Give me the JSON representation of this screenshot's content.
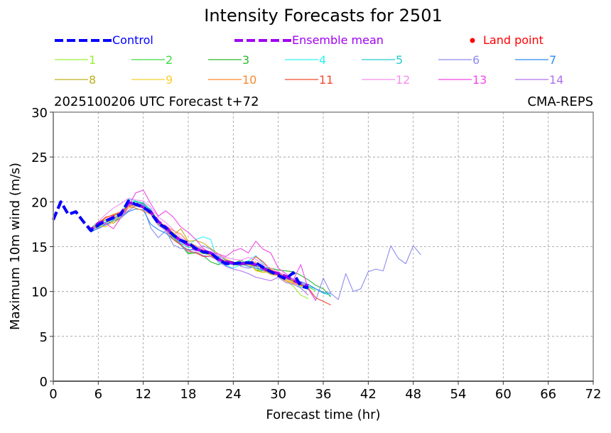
{
  "chart_data": {
    "type": "line",
    "title": "Intensity Forecasts for 2501",
    "subtitle_left": "2025100206 UTC Forecast t+72",
    "subtitle_right": "CMA-REPS",
    "xlabel": "Forecast time (hr)",
    "ylabel": "Maximum 10m wind (m/s)",
    "xlim": [
      0,
      72
    ],
    "ylim": [
      0,
      30
    ],
    "xticks": [
      0,
      6,
      12,
      18,
      24,
      30,
      36,
      42,
      48,
      54,
      60,
      66,
      72
    ],
    "yticks": [
      0,
      5,
      10,
      15,
      20,
      25,
      30
    ],
    "grid": true,
    "legend": {
      "placement": "top",
      "control": {
        "label": "Control",
        "color": "#0000ff"
      },
      "mean": {
        "label": "Ensemble mean",
        "color": "#a000f0"
      },
      "land": {
        "label": "Land point",
        "color": "#ff0000"
      },
      "members": [
        {
          "label": "1",
          "color": "#9aef3a"
        },
        {
          "label": "2",
          "color": "#3ddc3d"
        },
        {
          "label": "3",
          "color": "#2eb82e"
        },
        {
          "label": "4",
          "color": "#2ef2f2"
        },
        {
          "label": "5",
          "color": "#22cccc"
        },
        {
          "label": "6",
          "color": "#8c8cf0"
        },
        {
          "label": "7",
          "color": "#2d8cf0"
        },
        {
          "label": "8",
          "color": "#bfb020"
        },
        {
          "label": "9",
          "color": "#f7d02e"
        },
        {
          "label": "10",
          "color": "#f78a2e"
        },
        {
          "label": "11",
          "color": "#f04a2e"
        },
        {
          "label": "12",
          "color": "#f78cf0"
        },
        {
          "label": "13",
          "color": "#f048e8"
        },
        {
          "label": "14",
          "color": "#b070f0"
        }
      ]
    },
    "series": [
      {
        "name": "Control",
        "x": [
          0,
          1,
          2,
          3,
          4,
          5,
          6,
          7,
          8,
          9,
          10,
          11,
          12,
          13,
          14,
          15,
          16,
          17,
          18,
          19,
          20,
          21,
          22,
          23,
          24,
          25,
          26,
          27,
          28,
          29,
          30,
          31,
          32,
          33,
          34
        ],
        "values": [
          18,
          20,
          18.6,
          18.9,
          17.8,
          16.8,
          17.4,
          17.9,
          18.2,
          18.6,
          20.1,
          19.7,
          19.4,
          18.8,
          17.6,
          17.1,
          16.3,
          15.7,
          15.4,
          14.8,
          14.4,
          14.3,
          13.6,
          13.1,
          13.1,
          13.2,
          13.2,
          13.2,
          12.7,
          12.2,
          11.8,
          11.4,
          12.1,
          10.6,
          10.4
        ]
      },
      {
        "name": "Ensemble mean",
        "x": [
          0,
          1,
          2,
          3,
          4,
          5,
          6,
          7,
          8,
          9,
          10,
          11,
          12,
          13,
          14,
          15,
          16,
          17,
          18,
          19,
          20,
          21,
          22,
          23,
          24,
          25,
          26,
          27,
          28,
          29,
          30,
          31,
          32,
          33,
          34
        ],
        "values": [
          18,
          20,
          18.6,
          18.9,
          17.8,
          16.9,
          17.6,
          17.9,
          18.3,
          18.7,
          19.9,
          19.8,
          19.4,
          18.9,
          17.8,
          17.2,
          16.3,
          15.7,
          15.2,
          14.7,
          14.5,
          14.3,
          13.6,
          13.3,
          13.2,
          13.1,
          13.2,
          13.0,
          12.6,
          12.2,
          12.0,
          11.7,
          11.2,
          10.9,
          10.6
        ]
      },
      {
        "name": "1",
        "x": [
          5,
          6,
          7,
          8,
          9,
          10,
          11,
          12,
          13,
          14,
          15,
          16,
          17,
          18,
          19,
          20,
          21,
          22,
          23,
          24,
          25,
          26,
          27,
          28,
          29,
          30,
          31,
          32,
          33,
          34
        ],
        "values": [
          16.8,
          17.2,
          17.6,
          17.9,
          18.3,
          19.7,
          19.8,
          19.6,
          18.7,
          17.6,
          17.3,
          16.1,
          15.4,
          14.3,
          14.4,
          14.2,
          14.3,
          13.4,
          13.6,
          13.1,
          13.2,
          12.8,
          12.6,
          12.1,
          12.6,
          11.6,
          11.2,
          10.6,
          9.6,
          9.2
        ]
      },
      {
        "name": "2",
        "x": [
          5,
          6,
          7,
          8,
          9,
          10,
          11,
          12,
          13,
          14,
          15,
          16,
          17,
          18,
          19,
          20,
          21,
          22,
          23,
          24,
          25,
          26,
          27,
          28,
          29,
          30,
          31,
          32,
          33,
          34,
          35
        ],
        "values": [
          16.7,
          17.6,
          18.0,
          18.4,
          18.8,
          19.9,
          20.0,
          19.7,
          19.0,
          17.8,
          17.3,
          16.5,
          15.8,
          15.2,
          15.0,
          14.3,
          14.0,
          13.6,
          13.2,
          13.0,
          12.9,
          13.1,
          12.4,
          12.3,
          12.0,
          11.8,
          11.5,
          11.2,
          11.0,
          10.5,
          10.1
        ]
      },
      {
        "name": "3",
        "x": [
          5,
          6,
          7,
          8,
          9,
          10,
          11,
          12,
          13,
          14,
          15,
          16,
          17,
          18,
          19,
          20,
          21,
          22,
          23,
          24,
          25,
          26,
          27,
          28,
          29,
          30,
          31,
          32,
          33,
          34,
          35,
          36,
          37
        ],
        "values": [
          17.0,
          17.8,
          18.0,
          18.2,
          18.6,
          19.8,
          20.1,
          19.8,
          19.1,
          17.9,
          17.1,
          16.0,
          15.2,
          14.2,
          14.3,
          14.0,
          13.3,
          13.0,
          13.3,
          13.1,
          13.5,
          13.0,
          12.8,
          12.7,
          12.6,
          12.4,
          12.3,
          12.2,
          11.8,
          11.3,
          10.7,
          10.3,
          9.4
        ]
      },
      {
        "name": "4",
        "x": [
          5,
          6,
          7,
          8,
          9,
          10,
          11,
          12,
          13,
          14,
          15,
          16,
          17,
          18,
          19,
          20,
          21,
          22,
          23,
          24,
          25,
          26,
          27,
          28,
          29,
          30,
          31,
          32,
          33,
          34
        ],
        "values": [
          16.8,
          17.4,
          17.8,
          18.0,
          18.4,
          20.3,
          20.1,
          19.6,
          19.2,
          17.6,
          17.1,
          16.2,
          15.6,
          15.2,
          15.8,
          16.1,
          15.8,
          13.2,
          12.9,
          12.6,
          13.0,
          13.4,
          14.0,
          13.1,
          12.4,
          11.9,
          11.6,
          11.0,
          10.5,
          10.2
        ]
      },
      {
        "name": "5",
        "x": [
          5,
          6,
          7,
          8,
          9,
          10,
          11,
          12,
          13,
          14,
          15,
          16,
          17,
          18,
          19,
          20,
          21,
          22,
          23,
          24,
          25,
          26,
          27,
          28,
          29,
          30,
          31,
          32,
          33,
          34,
          35,
          36,
          37
        ],
        "values": [
          16.7,
          17.4,
          17.7,
          18.1,
          18.4,
          19.9,
          20.0,
          19.9,
          19.1,
          17.5,
          17.0,
          16.1,
          15.4,
          14.9,
          15.0,
          14.6,
          14.3,
          13.8,
          13.2,
          13.1,
          13.2,
          13.4,
          13.1,
          12.7,
          12.3,
          11.9,
          11.6,
          11.3,
          10.9,
          10.6,
          10.3,
          9.8,
          9.6
        ]
      },
      {
        "name": "6",
        "x": [
          5,
          6,
          7,
          8,
          9,
          10,
          11,
          12,
          13,
          14,
          15,
          16,
          17,
          18,
          19,
          20,
          21,
          22,
          23,
          24,
          25,
          26,
          27,
          28,
          29,
          30,
          31,
          32,
          33,
          34,
          35,
          36,
          37,
          38,
          39,
          40,
          41,
          42,
          43,
          44,
          45,
          46,
          47,
          48,
          49
        ],
        "values": [
          16.7,
          17.0,
          17.4,
          17.8,
          18.2,
          19.6,
          19.7,
          19.4,
          17.1,
          16.0,
          16.8,
          15.2,
          14.8,
          14.7,
          14.6,
          15.1,
          14.7,
          14.0,
          13.5,
          13.3,
          12.8,
          12.6,
          12.8,
          12.3,
          12.1,
          11.8,
          11.4,
          11.2,
          10.9,
          10.3,
          9.0,
          11.5,
          9.8,
          9.1,
          12.0,
          10.0,
          10.3,
          12.2,
          12.5,
          12.3,
          15.1,
          13.7,
          13.1,
          15.1,
          14.1
        ]
      },
      {
        "name": "7",
        "x": [
          5,
          6,
          7,
          8,
          9,
          10,
          11,
          12,
          13,
          14,
          15,
          16,
          17,
          18,
          19,
          20,
          21,
          22,
          23,
          24,
          25,
          26,
          27,
          28,
          29,
          30,
          31,
          32,
          33,
          34,
          35,
          36,
          37
        ],
        "values": [
          16.6,
          17.1,
          17.5,
          17.9,
          18.2,
          18.9,
          19.2,
          19.1,
          17.5,
          16.9,
          16.5,
          15.8,
          15.2,
          14.6,
          14.8,
          14.5,
          14.2,
          13.9,
          13.1,
          13.0,
          13.1,
          12.8,
          12.6,
          12.4,
          12.2,
          12.0,
          11.7,
          11.4,
          11.1,
          10.8,
          10.3,
          9.9,
          9.8
        ]
      },
      {
        "name": "8",
        "x": [
          5,
          6,
          7,
          8,
          9,
          10,
          11,
          12,
          13,
          14,
          15,
          16,
          17,
          18,
          19,
          20,
          21,
          22,
          23,
          24,
          25,
          26,
          27,
          28,
          29,
          30,
          31,
          32,
          33,
          34
        ],
        "values": [
          16.9,
          17.6,
          18.0,
          17.6,
          18.2,
          19.3,
          19.6,
          19.5,
          18.7,
          17.5,
          16.9,
          16.3,
          17.0,
          15.6,
          15.7,
          15.4,
          14.8,
          14.2,
          13.6,
          13.3,
          13.0,
          13.1,
          12.4,
          12.1,
          12.3,
          11.8,
          11.5,
          11.1,
          10.7,
          10.4
        ]
      },
      {
        "name": "9",
        "x": [
          5,
          6,
          7,
          8,
          9,
          10,
          11,
          12,
          13,
          14,
          15,
          16,
          17,
          18,
          19,
          20,
          21,
          22,
          23,
          24,
          25,
          26,
          27,
          28,
          29,
          30,
          31,
          32,
          33,
          34
        ],
        "values": [
          16.8,
          17.3,
          17.2,
          17.8,
          18.6,
          19.3,
          19.5,
          19.4,
          18.8,
          17.7,
          17.1,
          16.6,
          15.8,
          15.1,
          14.7,
          14.4,
          14.0,
          13.6,
          13.2,
          13.2,
          13.1,
          13.3,
          12.3,
          12.1,
          12.5,
          11.9,
          11.3,
          11.0,
          10.6,
          10.3
        ]
      },
      {
        "name": "10",
        "x": [
          5,
          6,
          7,
          8,
          9,
          10,
          11,
          12,
          13,
          14,
          15,
          16,
          17,
          18,
          19,
          20,
          21,
          22,
          23,
          24,
          25,
          26,
          27,
          28,
          29,
          30,
          31,
          32,
          33,
          34
        ],
        "values": [
          16.8,
          17.7,
          18.2,
          18.6,
          18.9,
          19.5,
          19.3,
          19.0,
          18.6,
          17.8,
          17.3,
          16.8,
          16.4,
          15.5,
          15.1,
          14.6,
          14.0,
          13.6,
          13.4,
          13.2,
          13.1,
          13.2,
          13.3,
          12.4,
          11.9,
          11.8,
          11.2,
          10.9,
          10.7,
          10.4
        ]
      },
      {
        "name": "11",
        "x": [
          5,
          6,
          7,
          8,
          9,
          10,
          11,
          12,
          13,
          14,
          15,
          16,
          17,
          18,
          19,
          20,
          21,
          22,
          23,
          24,
          25,
          26,
          27,
          28,
          29,
          30,
          31,
          32,
          33,
          34,
          35,
          36,
          37
        ],
        "values": [
          16.9,
          17.6,
          18.3,
          18.5,
          18.8,
          19.5,
          19.7,
          19.3,
          18.6,
          17.8,
          16.9,
          15.8,
          15.2,
          14.6,
          14.3,
          13.9,
          13.9,
          13.6,
          13.4,
          13.0,
          13.1,
          13.0,
          13.9,
          13.3,
          12.4,
          12.1,
          11.6,
          11.2,
          10.8,
          10.4,
          9.3,
          8.9,
          8.5
        ]
      },
      {
        "name": "12",
        "x": [
          5,
          6,
          7,
          8,
          9,
          10,
          11,
          12,
          13,
          14,
          15,
          16,
          17,
          18,
          19,
          20,
          21,
          22,
          23,
          24,
          25,
          26,
          27,
          28,
          29,
          30,
          31,
          32,
          33,
          34
        ],
        "values": [
          16.8,
          17.8,
          18.6,
          19.3,
          19.8,
          20.4,
          20.2,
          20.1,
          19.4,
          18.3,
          17.7,
          16.9,
          16.0,
          15.5,
          15.0,
          14.7,
          14.4,
          14.0,
          13.8,
          13.6,
          13.5,
          13.8,
          13.6,
          13.0,
          12.6,
          12.2,
          11.8,
          11.4,
          11.0,
          10.7
        ]
      },
      {
        "name": "13",
        "x": [
          5,
          6,
          7,
          8,
          9,
          10,
          11,
          12,
          13,
          14,
          15,
          16,
          17,
          18,
          19,
          20,
          21,
          22,
          23,
          24,
          25,
          26,
          27,
          28,
          29,
          30,
          31,
          32,
          33,
          34,
          35
        ],
        "values": [
          16.7,
          17.4,
          17.6,
          17.0,
          18.2,
          19.5,
          21.0,
          21.3,
          19.8,
          18.4,
          19.0,
          18.3,
          17.2,
          16.6,
          15.8,
          14.8,
          14.3,
          14.2,
          13.9,
          14.5,
          14.8,
          14.3,
          15.6,
          14.7,
          14.3,
          12.6,
          12.0,
          11.3,
          13.0,
          10.3,
          9.0
        ]
      },
      {
        "name": "14",
        "x": [
          5,
          6,
          7,
          8,
          9,
          10,
          11,
          12,
          13,
          14,
          15,
          16,
          17,
          18,
          19,
          20,
          21,
          22,
          23,
          24,
          25,
          26,
          27,
          28,
          29,
          30,
          31,
          32,
          33,
          34
        ],
        "values": [
          16.8,
          17.3,
          17.7,
          18.1,
          18.4,
          19.0,
          19.6,
          19.8,
          18.6,
          17.4,
          16.8,
          16.2,
          15.3,
          14.4,
          14.4,
          14.0,
          13.9,
          13.4,
          12.8,
          12.5,
          12.3,
          12.0,
          11.6,
          11.4,
          11.2,
          11.6,
          11.0,
          10.8,
          10.4,
          9.6
        ]
      }
    ]
  }
}
